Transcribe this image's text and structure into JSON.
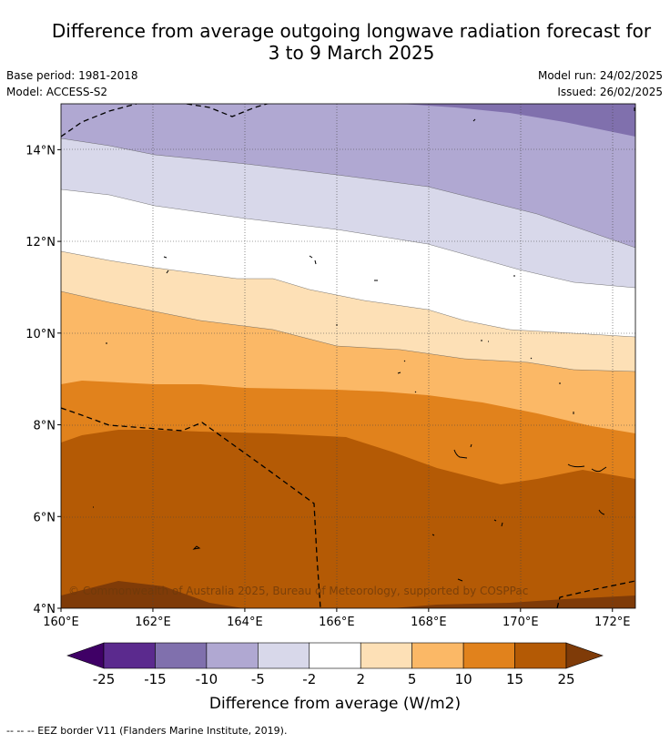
{
  "title": {
    "line1": "Difference from average outgoing longwave radiation forecast for",
    "line2": "3 to 9 March 2025"
  },
  "meta": {
    "base_period": "Base period: 1981-2018",
    "model": "Model: ACCESS-S2",
    "model_run": "Model run: 24/02/2025",
    "issued": "Issued: 26/02/2025"
  },
  "map": {
    "lon_range": [
      160,
      172.5
    ],
    "lat_range": [
      4,
      15
    ],
    "lat_ticks": [
      {
        "value": 14,
        "label": "14°N"
      },
      {
        "value": 12,
        "label": "12°N"
      },
      {
        "value": 10,
        "label": "10°N"
      },
      {
        "value": 8,
        "label": "8°N"
      },
      {
        "value": 6,
        "label": "6°N"
      },
      {
        "value": 4,
        "label": "4°N"
      }
    ],
    "lon_ticks": [
      {
        "value": 160,
        "label": "160°E"
      },
      {
        "value": 162,
        "label": "162°E"
      },
      {
        "value": 164,
        "label": "164°E"
      },
      {
        "value": 166,
        "label": "166°E"
      },
      {
        "value": 168,
        "label": "168°E"
      },
      {
        "value": 170,
        "label": "170°E"
      },
      {
        "value": 172,
        "label": "172°E"
      }
    ],
    "copyright": "© Commonwealth of Australia 2025, Bureau of Meteorology, supported by COSPPac"
  },
  "colorbar": {
    "label": "Difference from average (W/m2)",
    "colors": [
      "#3f0066",
      "#5b2a8e",
      "#8070ad",
      "#b0a8d2",
      "#d8d8ea",
      "#ffffff",
      "#fde0b6",
      "#fbb866",
      "#e1821c",
      "#b45a05",
      "#7f3b08"
    ],
    "ticks": [
      "-25",
      "-15",
      "-10",
      "-5",
      "-2",
      "2",
      "5",
      "10",
      "15",
      "25"
    ]
  },
  "footer": "--  --  -- EEZ border V11 (Flanders Marine Institute, 2019)."
}
